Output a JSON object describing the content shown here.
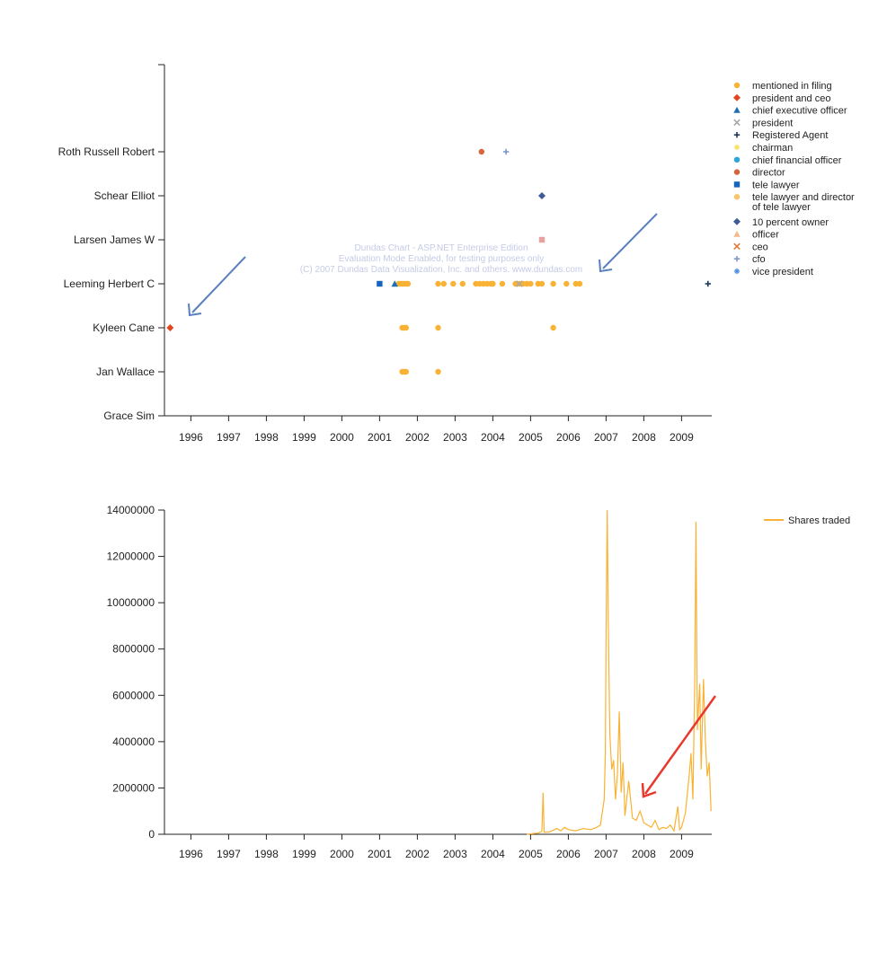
{
  "chart_data": [
    {
      "type": "scatter",
      "title": "",
      "xlabel": "",
      "ylabel": "",
      "x_ticks": [
        "1996",
        "1997",
        "1998",
        "1999",
        "2000",
        "2001",
        "2002",
        "2003",
        "2004",
        "2005",
        "2006",
        "2007",
        "2008",
        "2009"
      ],
      "xlim": [
        1995.3,
        2009.8
      ],
      "y_categories": [
        "Grace Sim",
        "Jan Wallace",
        "Kyleen Cane",
        "Leeming Herbert C",
        "Larsen James W",
        "Schear Elliot",
        "Roth Russell Robert"
      ],
      "grid": false,
      "legend_position": "right",
      "watermark": [
        "Dundas Chart - ASP.NET Enterprise Edition",
        "Evaluation Mode Enabled, for testing purposes only",
        "(C) 2007 Dundas Data Visualization, Inc. and others. www.dundas.com"
      ],
      "series": [
        {
          "name": "mentioned in filing",
          "color": "#f9b233",
          "marker": "circle",
          "points": [
            [
              "Leeming Herbert C",
              2001.5
            ],
            [
              "Leeming Herbert C",
              2001.55
            ],
            [
              "Leeming Herbert C",
              2001.6
            ],
            [
              "Leeming Herbert C",
              2001.65
            ],
            [
              "Leeming Herbert C",
              2001.7
            ],
            [
              "Leeming Herbert C",
              2001.75
            ],
            [
              "Leeming Herbert C",
              2002.55
            ],
            [
              "Leeming Herbert C",
              2002.7
            ],
            [
              "Leeming Herbert C",
              2002.95
            ],
            [
              "Leeming Herbert C",
              2003.2
            ],
            [
              "Leeming Herbert C",
              2003.55
            ],
            [
              "Leeming Herbert C",
              2003.65
            ],
            [
              "Leeming Herbert C",
              2003.75
            ],
            [
              "Leeming Herbert C",
              2003.85
            ],
            [
              "Leeming Herbert C",
              2003.95
            ],
            [
              "Leeming Herbert C",
              2004.0
            ],
            [
              "Leeming Herbert C",
              2004.25
            ],
            [
              "Leeming Herbert C",
              2004.6
            ],
            [
              "Leeming Herbert C",
              2004.7
            ],
            [
              "Leeming Herbert C",
              2004.8
            ],
            [
              "Leeming Herbert C",
              2004.9
            ],
            [
              "Leeming Herbert C",
              2005.0
            ],
            [
              "Leeming Herbert C",
              2005.2
            ],
            [
              "Leeming Herbert C",
              2005.3
            ],
            [
              "Leeming Herbert C",
              2005.6
            ],
            [
              "Leeming Herbert C",
              2005.95
            ],
            [
              "Leeming Herbert C",
              2006.2
            ],
            [
              "Leeming Herbert C",
              2006.3
            ],
            [
              "Kyleen Cane",
              2001.6
            ],
            [
              "Kyleen Cane",
              2001.65
            ],
            [
              "Kyleen Cane",
              2001.7
            ],
            [
              "Kyleen Cane",
              2002.55
            ],
            [
              "Kyleen Cane",
              2005.6
            ],
            [
              "Jan Wallace",
              2001.6
            ],
            [
              "Jan Wallace",
              2001.65
            ],
            [
              "Jan Wallace",
              2001.7
            ],
            [
              "Jan Wallace",
              2002.55
            ]
          ]
        },
        {
          "name": "president and ceo",
          "color": "#e2461e",
          "marker": "diamond",
          "points": [
            [
              "Kyleen Cane",
              1995.45
            ]
          ]
        },
        {
          "name": "chief executive officer",
          "color": "#1f6fb4",
          "marker": "triangle",
          "points": [
            [
              "Leeming Herbert C",
              2001.4
            ]
          ]
        },
        {
          "name": "president",
          "color": "#a8a8a8",
          "marker": "x",
          "points": [
            [
              "Leeming Herbert C",
              2004.7
            ]
          ]
        },
        {
          "name": "Registered Agent",
          "color": "#1b3a5c",
          "marker": "plus",
          "points": [
            [
              "Leeming Herbert C",
              2009.7
            ]
          ]
        },
        {
          "name": "chairman",
          "color": "#f8e05a",
          "marker": "star",
          "points": []
        },
        {
          "name": "chief financial officer",
          "color": "#2aa6de",
          "marker": "circle",
          "points": []
        },
        {
          "name": "director",
          "color": "#d8643c",
          "marker": "circle",
          "points": [
            [
              "Roth Russell Robert",
              2003.7
            ]
          ]
        },
        {
          "name": "tele lawyer",
          "color": "#1565c0",
          "marker": "square",
          "points": [
            [
              "Leeming Herbert C",
              2001.0
            ]
          ]
        },
        {
          "name": "tele lawyer and director of tele lawyer",
          "color": "#f9c46b",
          "marker": "circle",
          "points": []
        },
        {
          "name": "10 percent owner",
          "color": "#3d5a99",
          "marker": "diamond",
          "points": [
            [
              "Schear Elliot",
              2005.3
            ]
          ]
        },
        {
          "name": "officer",
          "color": "#f6b98a",
          "marker": "triangle",
          "points": []
        },
        {
          "name": "ceo",
          "color": "#e07a3a",
          "marker": "x",
          "points": []
        },
        {
          "name": "cfo",
          "color": "#7d97cf",
          "marker": "plus",
          "points": [
            [
              "Roth Russell Robert",
              2004.35
            ]
          ]
        },
        {
          "name": "vice president",
          "color": "#4f8fe0",
          "marker": "star",
          "points": []
        },
        {
          "name": "",
          "color": "#e8a0a0",
          "marker": "square",
          "points": [
            [
              "Larsen James W",
              2005.3
            ]
          ]
        }
      ]
    },
    {
      "type": "line",
      "title": "",
      "xlabel": "",
      "ylabel": "",
      "x_ticks": [
        "1996",
        "1997",
        "1998",
        "1999",
        "2000",
        "2001",
        "2002",
        "2003",
        "2004",
        "2005",
        "2006",
        "2007",
        "2008",
        "2009"
      ],
      "xlim": [
        1995.3,
        2009.8
      ],
      "y_ticks": [
        "0",
        "2000000",
        "4000000",
        "6000000",
        "8000000",
        "10000000",
        "12000000",
        "14000000"
      ],
      "ylim": [
        0,
        14000000
      ],
      "grid": false,
      "legend_position": "top-right",
      "series": [
        {
          "name": "Shares traded",
          "color": "#f9b233",
          "points": [
            [
              2004.9,
              0
            ],
            [
              2005.0,
              20000
            ],
            [
              2005.2,
              50000
            ],
            [
              2005.3,
              120000
            ],
            [
              2005.33,
              1800000
            ],
            [
              2005.36,
              80000
            ],
            [
              2005.5,
              100000
            ],
            [
              2005.7,
              250000
            ],
            [
              2005.8,
              150000
            ],
            [
              2005.9,
              300000
            ],
            [
              2006.0,
              200000
            ],
            [
              2006.2,
              150000
            ],
            [
              2006.4,
              250000
            ],
            [
              2006.6,
              200000
            ],
            [
              2006.75,
              300000
            ],
            [
              2006.85,
              400000
            ],
            [
              2006.95,
              1500000
            ],
            [
              2006.98,
              3500000
            ],
            [
              2007.0,
              8800000
            ],
            [
              2007.03,
              14000000
            ],
            [
              2007.06,
              9000000
            ],
            [
              2007.1,
              4300000
            ],
            [
              2007.15,
              2800000
            ],
            [
              2007.2,
              3200000
            ],
            [
              2007.25,
              1500000
            ],
            [
              2007.3,
              2600000
            ],
            [
              2007.35,
              5300000
            ],
            [
              2007.4,
              1800000
            ],
            [
              2007.45,
              3100000
            ],
            [
              2007.5,
              800000
            ],
            [
              2007.6,
              2300000
            ],
            [
              2007.7,
              700000
            ],
            [
              2007.8,
              600000
            ],
            [
              2007.9,
              1000000
            ],
            [
              2008.0,
              500000
            ],
            [
              2008.1,
              400000
            ],
            [
              2008.2,
              300000
            ],
            [
              2008.3,
              600000
            ],
            [
              2008.4,
              200000
            ],
            [
              2008.5,
              300000
            ],
            [
              2008.6,
              250000
            ],
            [
              2008.7,
              400000
            ],
            [
              2008.8,
              150000
            ],
            [
              2008.9,
              1200000
            ],
            [
              2008.95,
              200000
            ],
            [
              2009.0,
              300000
            ],
            [
              2009.1,
              900000
            ],
            [
              2009.15,
              1700000
            ],
            [
              2009.2,
              2500000
            ],
            [
              2009.25,
              3500000
            ],
            [
              2009.3,
              1500000
            ],
            [
              2009.35,
              6600000
            ],
            [
              2009.38,
              13500000
            ],
            [
              2009.42,
              4500000
            ],
            [
              2009.48,
              6500000
            ],
            [
              2009.52,
              2800000
            ],
            [
              2009.58,
              6700000
            ],
            [
              2009.63,
              4000000
            ],
            [
              2009.68,
              2500000
            ],
            [
              2009.73,
              3100000
            ],
            [
              2009.78,
              1000000
            ]
          ]
        }
      ]
    }
  ]
}
